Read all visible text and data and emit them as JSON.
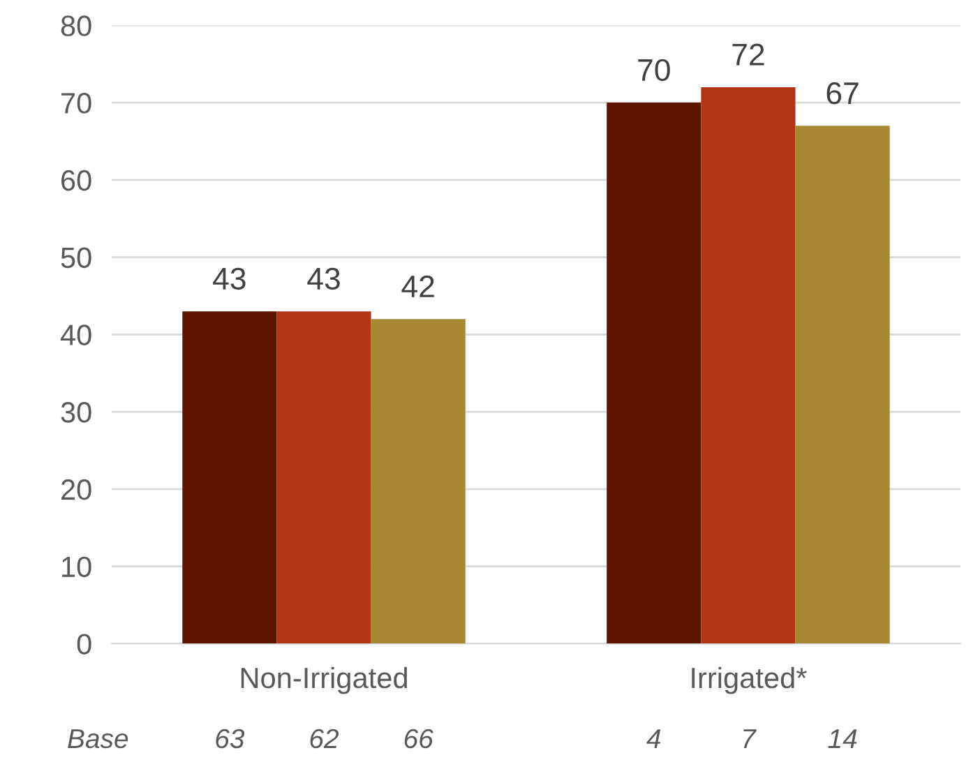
{
  "chart_data": {
    "type": "bar",
    "categories": [
      "Non-Irrigated",
      "Irrigated*"
    ],
    "series": [
      {
        "color": "#5e1500",
        "values": [
          43,
          70
        ]
      },
      {
        "color": "#b33513",
        "values": [
          43,
          72
        ]
      },
      {
        "color": "#a88735",
        "values": [
          42,
          67
        ]
      }
    ],
    "ylim": [
      0,
      80
    ],
    "yticks": [
      0,
      10,
      20,
      30,
      40,
      50,
      60,
      70,
      80
    ],
    "grid": "y",
    "data_labels": true,
    "annotations": [
      "Base",
      "63",
      "62",
      "66",
      "4",
      "7",
      "14"
    ]
  }
}
